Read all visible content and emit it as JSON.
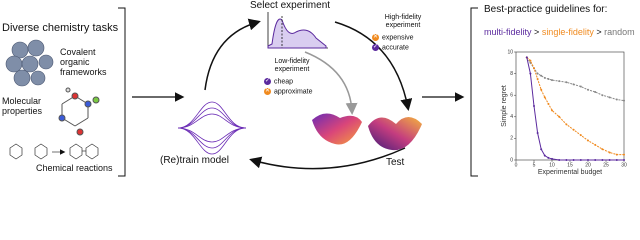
{
  "tasks": {
    "title": "Diverse chemistry tasks",
    "items": [
      "Covalent organic frameworks",
      "Molecular properties",
      "Chemical reactions"
    ]
  },
  "cycle": {
    "select": "Select experiment",
    "train": "(Re)train model",
    "test": "Test",
    "low_fidelity": {
      "title": "Low-fidelity experiment",
      "pro": "cheap",
      "con": "approximate"
    },
    "high_fidelity": {
      "title": "High-fidelity experiment",
      "con": "expensive",
      "pro": "accurate"
    }
  },
  "guidelines": {
    "title": "Best-practice guidelines for:",
    "ranking": [
      "multi-fidelity",
      "single-fidelity",
      "random"
    ],
    "separator": ">"
  },
  "chart_data": {
    "type": "line",
    "xlabel": "Experimental budget",
    "ylabel": "Simple regret",
    "x": [
      3,
      4,
      5,
      6,
      7,
      8,
      9,
      10,
      12,
      14,
      16,
      18,
      20,
      22,
      24,
      26,
      28,
      30
    ],
    "series": [
      {
        "color": "#888888",
        "values": [
          9.5,
          9,
          8.5,
          8,
          7.8,
          7.6,
          7.5,
          7.4,
          7.3,
          7.2,
          7,
          6.8,
          6.5,
          6.3,
          6,
          5.8,
          5.6,
          5.5
        ]
      },
      {
        "color": "#f08a1e",
        "values": [
          9.5,
          9.2,
          8.5,
          7.5,
          6.5,
          5.8,
          5.2,
          4.6,
          4,
          3.3,
          2.8,
          2.3,
          1.8,
          1.4,
          1,
          0.7,
          0.5,
          0.5
        ]
      },
      {
        "color": "#5b2a9e",
        "values": [
          9.5,
          8,
          5,
          2.5,
          1,
          0.4,
          0.2,
          0.1,
          0,
          0,
          0,
          0,
          0,
          0,
          0,
          0,
          0,
          0
        ]
      }
    ],
    "xlim": [
      0,
      30
    ],
    "ylim": [
      0,
      10
    ],
    "xticks": [
      0,
      5,
      10,
      15,
      20,
      25,
      30
    ],
    "yticks": [
      0,
      2,
      4,
      6,
      8,
      10
    ]
  }
}
